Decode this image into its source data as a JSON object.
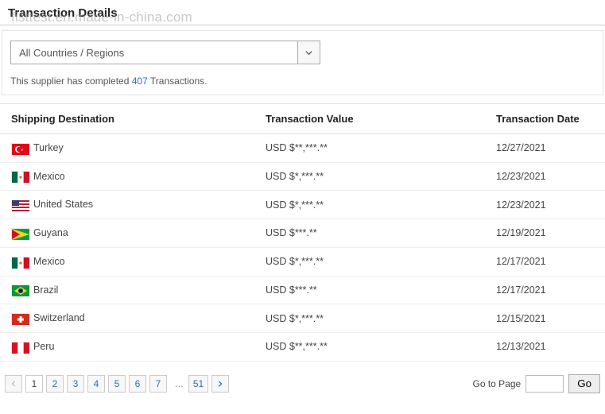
{
  "header": {
    "title": "Transaction Details",
    "watermark": "fisttest.en.made-in-china.com"
  },
  "filter": {
    "dropdown_label": "All Countries / Regions"
  },
  "summary": {
    "prefix": "This supplier has completed ",
    "count": "407",
    "suffix": " Transactions."
  },
  "columns": {
    "dest": "Shipping Destination",
    "value": "Transaction Value",
    "date": "Transaction Date"
  },
  "rows": [
    {
      "country": "Turkey",
      "value": "USD $**,***.**",
      "date": "12/27/2021",
      "flag_colors": {
        "bg": "#e30a17",
        "accent": "#ffffff"
      }
    },
    {
      "country": "Mexico",
      "value": "USD $*,***.**",
      "date": "12/23/2021",
      "flag_colors": {
        "left": "#006847",
        "mid": "#ffffff",
        "right": "#ce1126"
      }
    },
    {
      "country": "United States",
      "value": "USD $*,***.**",
      "date": "12/23/2021",
      "flag_colors": {
        "stripe1": "#b22234",
        "stripe2": "#ffffff",
        "canton": "#3c3b6e"
      }
    },
    {
      "country": "Guyana",
      "value": "USD $***.**",
      "date": "12/19/2021",
      "flag_colors": {
        "bg": "#009e49",
        "tri1": "#fcd116",
        "tri2": "#ce1126"
      }
    },
    {
      "country": "Mexico",
      "value": "USD $*,***.**",
      "date": "12/17/2021",
      "flag_colors": {
        "left": "#006847",
        "mid": "#ffffff",
        "right": "#ce1126"
      }
    },
    {
      "country": "Brazil",
      "value": "USD $***.**",
      "date": "12/17/2021",
      "flag_colors": {
        "bg": "#009b3a",
        "diamond": "#ffcc29",
        "circle": "#002776"
      }
    },
    {
      "country": "Switzerland",
      "value": "USD $*,***.**",
      "date": "12/15/2021",
      "flag_colors": {
        "bg": "#d52b1e",
        "cross": "#ffffff"
      }
    },
    {
      "country": "Peru",
      "value": "USD $**,***.**",
      "date": "12/13/2021",
      "flag_colors": {
        "side": "#d91023",
        "mid": "#ffffff"
      }
    }
  ],
  "pager": {
    "pages": [
      "1",
      "2",
      "3",
      "4",
      "5",
      "6",
      "7"
    ],
    "last": "51",
    "goto_label": "Go to Page",
    "go_label": "Go",
    "current": "1"
  }
}
